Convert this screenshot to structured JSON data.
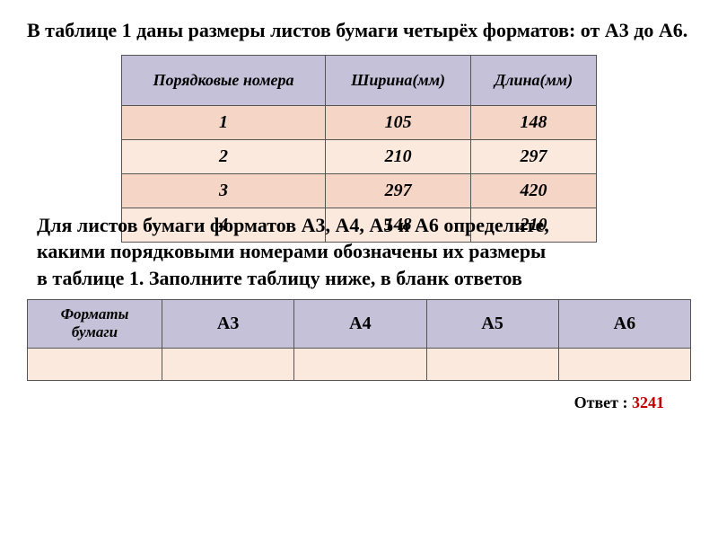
{
  "title": "В таблице 1 даны размеры листов бумаги четырёх форматов: от A3 до A6.",
  "table1": {
    "columns": [
      "Порядковые номера",
      "Ширина(мм)",
      "Длина(мм)"
    ],
    "rows": [
      [
        "1",
        "105",
        "148"
      ],
      [
        "2",
        "210",
        "297"
      ],
      [
        "3",
        "297",
        "420"
      ],
      [
        "4",
        "148",
        "210"
      ]
    ],
    "header_bg": "#c5c1d9",
    "row_bg_odd": "#f5d5c5",
    "row_bg_even": "#fce9de",
    "border_color": "#555555",
    "font_style": "italic",
    "font_weight": "bold"
  },
  "paragraph": {
    "line1": "  Для листов бумаги форматов А3, А4, А5 и А6 определите,",
    "line2": "  какими порядковыми номерами обозначены их размеры",
    "line3": "  в таблице 1. Заполните таблицу ниже, в бланк ответов"
  },
  "table2": {
    "label": "Форматы бумаги",
    "columns": [
      "А3",
      "А4",
      "А5",
      "А6"
    ],
    "header_bg": "#c5c1d9",
    "body_bg": "#fce9de",
    "border_color": "#555555"
  },
  "answer": {
    "label": "Ответ : ",
    "value": "3241",
    "value_color": "#c00000"
  },
  "colors": {
    "text": "#000000",
    "background": "#ffffff"
  },
  "typography": {
    "font_family": "Times New Roman",
    "title_fontsize": 22,
    "paragraph_fontsize": 22,
    "table_fontsize": 20,
    "answer_fontsize": 18
  }
}
